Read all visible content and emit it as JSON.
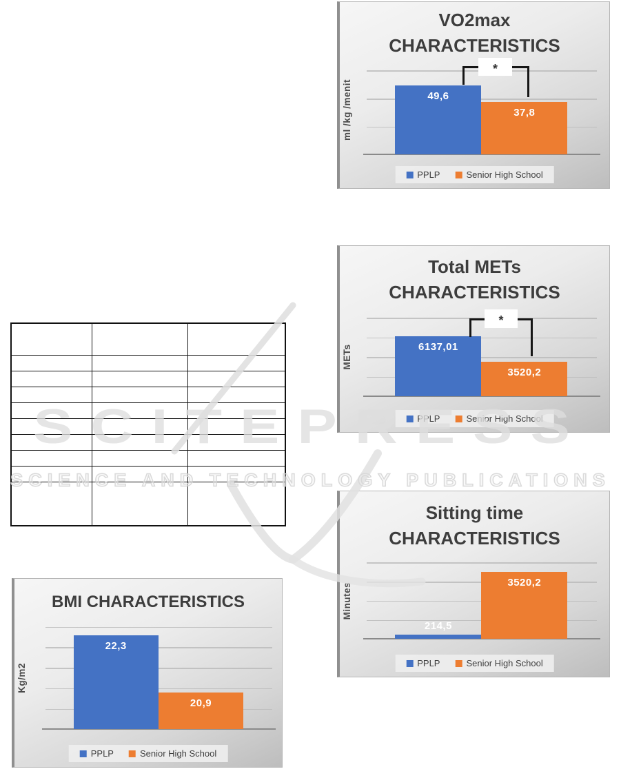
{
  "watermark": {
    "brand": "SCITEPRESS",
    "tagline": "SCIENCE AND TECHNOLOGY PUBLICATIONS"
  },
  "table": {
    "rows": 10,
    "columns": 3,
    "cells_empty": true
  },
  "chart_data": [
    {
      "type": "bar",
      "title": "VO2max CHARACTERISTICS",
      "title_lines": [
        "VO2max",
        "CHARACTERISTICS"
      ],
      "ylabel": "ml /kg /menit",
      "categories": [
        "PPLP",
        "Senior High School"
      ],
      "values": [
        49.6,
        37.8
      ],
      "value_labels": [
        "49,6",
        "37,8"
      ],
      "series_colors": [
        "#4472C4",
        "#ED7D31"
      ],
      "legend": [
        "PPLP",
        "Senior High School"
      ],
      "legend_position": "bottom",
      "significance": "*",
      "ylim": [
        0,
        60
      ],
      "gridline_values": [
        60,
        40,
        20
      ],
      "grid": true
    },
    {
      "type": "bar",
      "title": "Total METs CHARACTERISTICS",
      "title_lines": [
        "Total METs",
        "CHARACTERISTICS"
      ],
      "ylabel": "METs",
      "categories": [
        "PPLP",
        "Senior High School"
      ],
      "values": [
        6137.01,
        3520.2
      ],
      "value_labels": [
        "6137,01",
        "3520,2"
      ],
      "series_colors": [
        "#4472C4",
        "#ED7D31"
      ],
      "legend": [
        "PPLP",
        "Senior High School"
      ],
      "legend_position": "bottom",
      "significance": "*",
      "ylim": [
        0,
        8000
      ],
      "gridline_values": [
        8000,
        6000,
        4000,
        2000
      ],
      "grid": true
    },
    {
      "type": "bar",
      "title": "Sitting time CHARACTERISTICS",
      "title_lines": [
        "Sitting time",
        "CHARACTERISTICS"
      ],
      "ylabel": "Minutes",
      "categories": [
        "PPLP",
        "Senior High School"
      ],
      "values": [
        214.5,
        3520.2
      ],
      "value_labels": [
        "214,5",
        "3520,2"
      ],
      "series_colors": [
        "#4472C4",
        "#ED7D31"
      ],
      "legend": [
        "PPLP",
        "Senior High School"
      ],
      "legend_position": "bottom",
      "significance": null,
      "ylim": [
        0,
        4000
      ],
      "gridline_values": [
        4000,
        3000,
        2000,
        1000
      ],
      "grid": true
    },
    {
      "type": "bar",
      "title": "BMI CHARACTERISTICS",
      "title_lines": [
        "BMI CHARACTERISTICS"
      ],
      "ylabel": "Kg/m2",
      "categories": [
        "PPLP",
        "Senior High School"
      ],
      "values": [
        22.3,
        20.9
      ],
      "value_labels": [
        "22,3",
        "20,9"
      ],
      "series_colors": [
        "#4472C4",
        "#ED7D31"
      ],
      "legend": [
        "PPLP",
        "Senior High School"
      ],
      "legend_position": "bottom",
      "significance": null,
      "ylim": [
        20,
        22.5
      ],
      "gridline_values": [
        22.5,
        22,
        21.5,
        21,
        20.5
      ],
      "grid": true
    }
  ]
}
